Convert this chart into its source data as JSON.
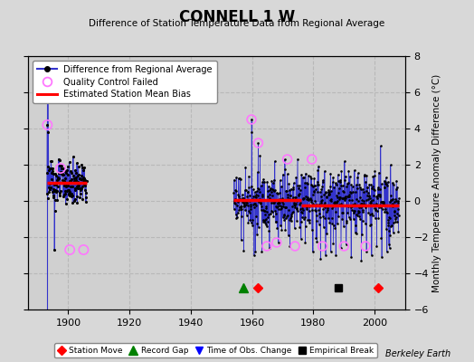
{
  "title": "CONNELL 1 W",
  "subtitle": "Difference of Station Temperature Data from Regional Average",
  "ylabel": "Monthly Temperature Anomaly Difference (°C)",
  "credit": "Berkeley Earth",
  "xlim": [
    1887,
    2010
  ],
  "ylim": [
    -6,
    8
  ],
  "yticks": [
    -6,
    -4,
    -2,
    0,
    2,
    4,
    6,
    8
  ],
  "xticks": [
    1900,
    1920,
    1940,
    1960,
    1980,
    2000
  ],
  "bg_color": "#d8d8d8",
  "plot_bg_color": "#d0d0d0",
  "grid_color": "#b8b8b8",
  "line_color": "#3333cc",
  "dot_color": "black",
  "bias_color": "red",
  "qc_color": "#ff77ff",
  "station_moves": [
    1962,
    2001
  ],
  "record_gaps": [
    1957
  ],
  "obs_changes": [],
  "empirical_breaks": [
    1988
  ],
  "event_y": -4.8,
  "early_start": 1893,
  "early_end": 1906,
  "late_start": 1954,
  "late_end": 2008,
  "early_bias_y": 1.0,
  "late_bias_y1": 0.05,
  "late_bias_y2": -0.25,
  "late_bias_break": 1976
}
